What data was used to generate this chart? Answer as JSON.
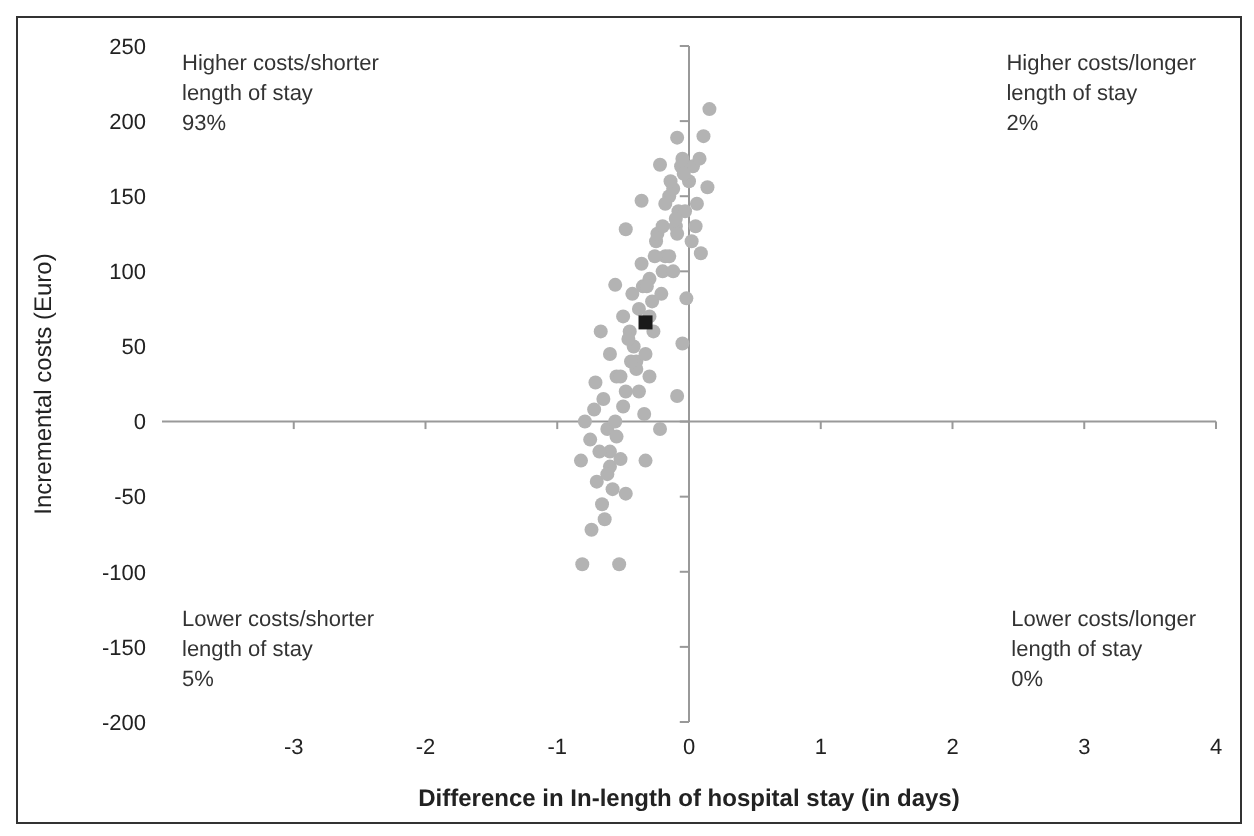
{
  "chart_data": {
    "type": "scatter",
    "xlabel": "Difference in In-length of hospital stay (in days)",
    "ylabel": "Incremental costs (Euro)",
    "xlim": [
      -4,
      4
    ],
    "xticks": [
      -3,
      -2,
      -1,
      0,
      1,
      2,
      3,
      4
    ],
    "ylim": [
      -200,
      250
    ],
    "yticks": [
      -200,
      -150,
      -100,
      -50,
      0,
      50,
      100,
      150,
      200,
      250
    ],
    "annotations": [
      "Higher costs/shorter length of stay 93%",
      "Higher costs/longer length of stay 2%",
      "Lower costs/shorter length of stay 5%",
      "Lower costs/longer length of stay 0%"
    ],
    "series": [
      {
        "color": "#b3b3b3",
        "marker": "circle",
        "x": [
          -0.82,
          -0.79,
          -0.71,
          -0.67,
          -0.56,
          -0.48,
          -0.36,
          -0.22,
          -0.09,
          0.11,
          0.14,
          0.09,
          -0.02,
          -0.05,
          -0.09,
          -0.22,
          -0.33,
          -0.48,
          -0.64,
          -0.74,
          -0.81,
          -0.53,
          0.155,
          -0.6,
          -0.5,
          -0.4,
          -0.3,
          -0.2,
          -0.1,
          0,
          -0.55,
          -0.45,
          -0.35,
          -0.25,
          -0.15,
          -0.05,
          -0.7,
          -0.62,
          -0.42,
          -0.28,
          -0.18,
          -0.08,
          0.03,
          -0.66,
          -0.38,
          -0.12,
          -0.58,
          -0.6,
          -0.3,
          0.02,
          -0.75,
          -0.72,
          -0.68,
          -0.65,
          -0.6,
          -0.55,
          -0.52,
          -0.5,
          -0.46,
          -0.43,
          -0.4,
          -0.36,
          -0.33,
          -0.3,
          -0.27,
          -0.24,
          -0.21,
          -0.18,
          -0.15,
          -0.12,
          -0.09,
          -0.06,
          -0.03,
          0.05,
          0.08,
          -0.62,
          -0.56,
          -0.48,
          -0.44,
          -0.38,
          -0.32,
          -0.26,
          -0.2,
          -0.14,
          -0.1,
          -0.04,
          0.06,
          -0.52,
          -0.34
        ],
        "values": [
          -26,
          0,
          26,
          60,
          91,
          128,
          147,
          171,
          189,
          190,
          156,
          112,
          82,
          52,
          17,
          -5,
          -26,
          -48,
          -65,
          -72,
          -95,
          -95,
          208,
          -20,
          10,
          40,
          70,
          100,
          130,
          160,
          30,
          60,
          90,
          120,
          150,
          175,
          -40,
          -5,
          50,
          80,
          110,
          140,
          170,
          -55,
          20,
          100,
          -45,
          -30,
          30,
          120,
          -12,
          8,
          -20,
          15,
          45,
          -10,
          30,
          70,
          55,
          85,
          35,
          105,
          45,
          95,
          60,
          125,
          85,
          145,
          110,
          155,
          125,
          170,
          140,
          130,
          175,
          -35,
          0,
          20,
          40,
          75,
          90,
          110,
          130,
          160,
          135,
          165,
          145,
          -25,
          5
        ]
      },
      {
        "color": "#1a1a1a",
        "marker": "square",
        "x": [
          -0.33
        ],
        "values": [
          66
        ]
      }
    ]
  }
}
